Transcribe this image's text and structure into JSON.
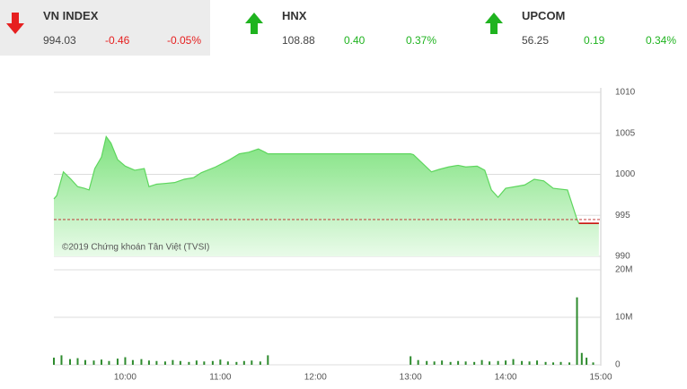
{
  "tickers": [
    {
      "name": "VN INDEX",
      "value": "994.03",
      "change": "-0.46",
      "percent": "-0.05%",
      "direction": "down"
    },
    {
      "name": "HNX",
      "value": "108.88",
      "change": "0.40",
      "percent": "0.37%",
      "direction": "up"
    },
    {
      "name": "UPCOM",
      "value": "56.25",
      "change": "0.19",
      "percent": "0.34%",
      "direction": "up"
    }
  ],
  "chart_data": [
    {
      "type": "area",
      "watermark": "©2019 Chứng khoán Tân Việt (TVSI)",
      "color": "#5ed65e",
      "down_color": "#cc0000",
      "reference": 994.49,
      "x": [
        9.25,
        9.28,
        9.35,
        9.43,
        9.5,
        9.57,
        9.62,
        9.68,
        9.75,
        9.8,
        9.85,
        9.92,
        10.0,
        10.1,
        10.2,
        10.25,
        10.33,
        10.43,
        10.52,
        10.62,
        10.72,
        10.8,
        10.95,
        11.1,
        11.2,
        11.3,
        11.4,
        11.47,
        11.5,
        13.0,
        13.03,
        13.12,
        13.22,
        13.3,
        13.4,
        13.5,
        13.58,
        13.7,
        13.78,
        13.85,
        13.92,
        14.0,
        14.1,
        14.2,
        14.3,
        14.4,
        14.5,
        14.65,
        14.75,
        14.77,
        14.98
      ],
      "values": [
        997.0,
        997.4,
        1000.3,
        999.4,
        998.5,
        998.3,
        998.1,
        1000.7,
        1002.1,
        1004.6,
        1003.8,
        1001.8,
        1001.0,
        1000.5,
        1000.7,
        998.5,
        998.8,
        998.9,
        999.0,
        999.4,
        999.6,
        1000.2,
        1000.9,
        1001.8,
        1002.5,
        1002.7,
        1003.1,
        1002.7,
        1002.5,
        1002.5,
        1002.4,
        1001.4,
        1000.3,
        1000.6,
        1000.9,
        1001.1,
        1000.9,
        1001.0,
        1000.5,
        998.1,
        997.2,
        998.3,
        998.5,
        998.7,
        999.4,
        999.2,
        998.3,
        998.1,
        994.5,
        994.03,
        994.03
      ],
      "xlim": [
        9.25,
        15
      ],
      "ylim": [
        990,
        1010
      ],
      "yticks": [
        990,
        995,
        1000,
        1005,
        1010
      ],
      "grid": true
    },
    {
      "type": "bar",
      "color": "#2e8b2e",
      "x": [
        9.25,
        9.33,
        9.42,
        9.5,
        9.58,
        9.67,
        9.75,
        9.83,
        9.92,
        10.0,
        10.08,
        10.17,
        10.25,
        10.33,
        10.42,
        10.5,
        10.58,
        10.67,
        10.75,
        10.83,
        10.92,
        11.0,
        11.08,
        11.17,
        11.25,
        11.33,
        11.42,
        11.5,
        13.0,
        13.08,
        13.17,
        13.25,
        13.33,
        13.42,
        13.5,
        13.58,
        13.67,
        13.75,
        13.83,
        13.92,
        14.0,
        14.08,
        14.17,
        14.25,
        14.33,
        14.42,
        14.5,
        14.58,
        14.67,
        14.75,
        14.8,
        14.85,
        14.92
      ],
      "values": [
        1.5,
        2.0,
        1.2,
        1.4,
        1.0,
        0.9,
        1.1,
        0.8,
        1.3,
        1.6,
        1.0,
        1.2,
        0.9,
        0.8,
        0.7,
        1.0,
        0.8,
        0.6,
        0.9,
        0.7,
        0.8,
        1.1,
        0.7,
        0.6,
        0.8,
        0.9,
        0.7,
        2.0,
        1.8,
        1.0,
        0.8,
        0.7,
        0.9,
        0.6,
        0.8,
        0.7,
        0.6,
        1.0,
        0.7,
        0.8,
        0.9,
        1.2,
        0.8,
        0.7,
        0.9,
        0.6,
        0.5,
        0.6,
        0.5,
        14.2,
        2.5,
        1.5,
        0.5
      ],
      "xlim": [
        9.25,
        15
      ],
      "ylim": [
        0,
        20
      ],
      "yticks": [
        0,
        {
          "value": 10,
          "label": "10M"
        },
        {
          "value": 20,
          "label": "20M"
        }
      ],
      "xticks": [
        {
          "value": 10,
          "label": "10:00"
        },
        {
          "value": 11,
          "label": "11:00"
        },
        {
          "value": 12,
          "label": "12:00"
        },
        {
          "value": 13,
          "label": "13:00"
        },
        {
          "value": 14,
          "label": "14:00"
        },
        {
          "value": 15,
          "label": "15:00"
        }
      ],
      "grid": true
    }
  ]
}
